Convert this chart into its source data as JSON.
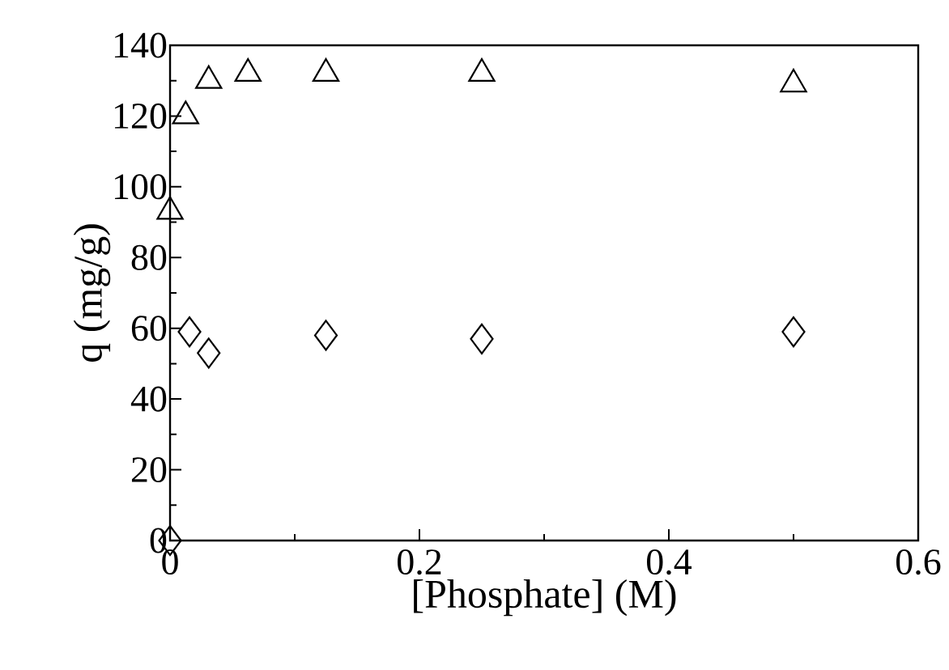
{
  "chart_data": {
    "type": "scatter",
    "xlabel": "[Phosphate]  (M)",
    "ylabel": "q (mg/g)",
    "xlim": [
      0,
      0.6
    ],
    "ylim": [
      0,
      140
    ],
    "xticks": [
      0,
      0.2,
      0.4,
      0.6
    ],
    "yticks": [
      0,
      20,
      40,
      60,
      80,
      100,
      120,
      140
    ],
    "grid": false,
    "series": [
      {
        "color": "#000000",
        "marker": "triangle",
        "x": [
          0,
          0.0125,
          0.031,
          0.0625,
          0.125,
          0.25,
          0.5
        ],
        "values": [
          93,
          120,
          130,
          132,
          132,
          132,
          129
        ]
      },
      {
        "color": "#000000",
        "marker": "diamond",
        "x": [
          0,
          0.0156,
          0.031,
          0.125,
          0.25,
          0.5
        ],
        "values": [
          0,
          59,
          53,
          58,
          57,
          59
        ]
      }
    ]
  }
}
